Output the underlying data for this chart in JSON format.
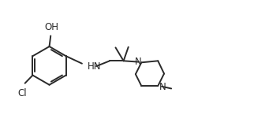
{
  "background": "#ffffff",
  "line_color": "#2a2a2a",
  "line_width": 1.4,
  "font_size": 8.5,
  "xlim": [
    0,
    10.5
  ],
  "ylim": [
    0,
    4.5
  ],
  "figsize": [
    3.55,
    1.6
  ],
  "dpi": 100
}
